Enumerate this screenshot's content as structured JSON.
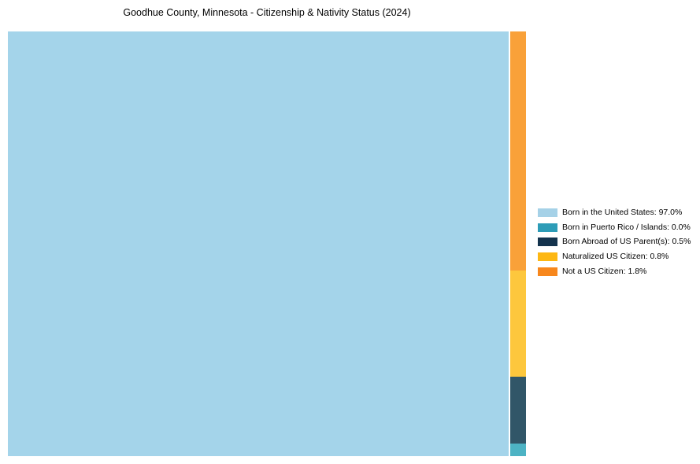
{
  "title": "Goodhue County, Minnesota - Citizenship & Nativity Status (2024)",
  "chart_data": {
    "type": "treemap",
    "title": "Goodhue County, Minnesota - Citizenship & Nativity Status (2024)",
    "legend_position": "right",
    "background_color": "#ffffff",
    "series": [
      {
        "name": "Born in the United States",
        "value": 97.0,
        "pct_label": "97.0%",
        "legend_label": "Born in the United States: 97.0%",
        "legend_color": "#a5d1e7",
        "block_color": "#a4d4ea"
      },
      {
        "name": "Born in Puerto Rico / Islands",
        "value": 0.0,
        "pct_label": "0.0%",
        "legend_label": "Born in Puerto Rico / Islands: 0.0%",
        "legend_color": "#2d9cb7",
        "block_color": "#4db3c4"
      },
      {
        "name": "Born Abroad of US Parent(s)",
        "value": 0.5,
        "pct_label": "0.5%",
        "legend_label": "Born Abroad of US Parent(s): 0.5%",
        "legend_color": "#14334d",
        "block_color": "#315668"
      },
      {
        "name": "Naturalized US Citizen",
        "value": 0.8,
        "pct_label": "0.8%",
        "legend_label": "Naturalized US Citizen: 0.8%",
        "legend_color": "#fdb713",
        "block_color": "#fdc73d"
      },
      {
        "name": "Not a US Citizen",
        "value": 1.8,
        "pct_label": "1.8%",
        "legend_label": "Not a US Citizen: 1.8%",
        "legend_color": "#f7871d",
        "block_color": "#f9a139"
      }
    ]
  }
}
